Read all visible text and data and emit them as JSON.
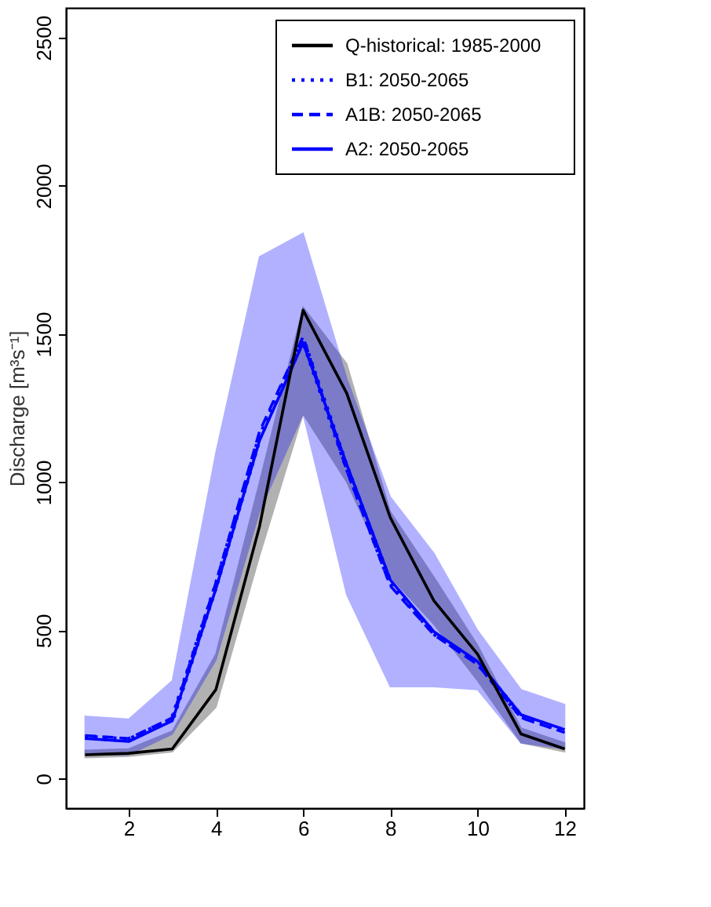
{
  "chart_data": {
    "type": "line",
    "ylabel": "Discharge [m³s⁻¹]",
    "x": [
      1,
      2,
      3,
      4,
      5,
      6,
      7,
      8,
      9,
      10,
      11,
      12
    ],
    "xlim": [
      0.56,
      12.44
    ],
    "ylim": [
      -100,
      2600
    ],
    "xticks": [
      2,
      4,
      6,
      8,
      10,
      12
    ],
    "yticks": [
      0,
      500,
      1000,
      1500,
      2000,
      2500
    ],
    "grid": false,
    "legend": "top right",
    "marker": "none",
    "series": [
      {
        "name": "Q-historical: 1985-2000",
        "color": "#000000",
        "line_style": "solid",
        "values": [
          80,
          85,
          100,
          300,
          850,
          1580,
          1300,
          880,
          600,
          420,
          150,
          100
        ],
        "lower": [
          70,
          75,
          90,
          240,
          750,
          1230,
          1000,
          680,
          520,
          330,
          120,
          90
        ],
        "upper": [
          95,
          100,
          160,
          420,
          1000,
          1590,
          1400,
          900,
          680,
          450,
          170,
          120
        ]
      },
      {
        "name": "B1: 2050-2065",
        "color": "#0000ff",
        "line_style": "dotted",
        "values": [
          140,
          130,
          200,
          650,
          1150,
          1480,
          1050,
          660,
          490,
          390,
          210,
          160
        ]
      },
      {
        "name": "A1B: 2050-2065",
        "color": "#0000ff",
        "line_style": "dashed",
        "values": [
          145,
          135,
          205,
          660,
          1170,
          1490,
          1040,
          650,
          485,
          385,
          205,
          155
        ]
      },
      {
        "name": "A2: 2050-2065",
        "color": "#0000ff",
        "line_style": "solid",
        "values": [
          135,
          125,
          195,
          640,
          1140,
          1470,
          1060,
          670,
          495,
          395,
          215,
          165
        ],
        "lower": [
          80,
          80,
          150,
          400,
          900,
          1230,
          620,
          310,
          310,
          300,
          120,
          100
        ],
        "upper": [
          210,
          200,
          330,
          1100,
          1760,
          1840,
          1350,
          950,
          760,
          500,
          300,
          250
        ]
      }
    ]
  }
}
